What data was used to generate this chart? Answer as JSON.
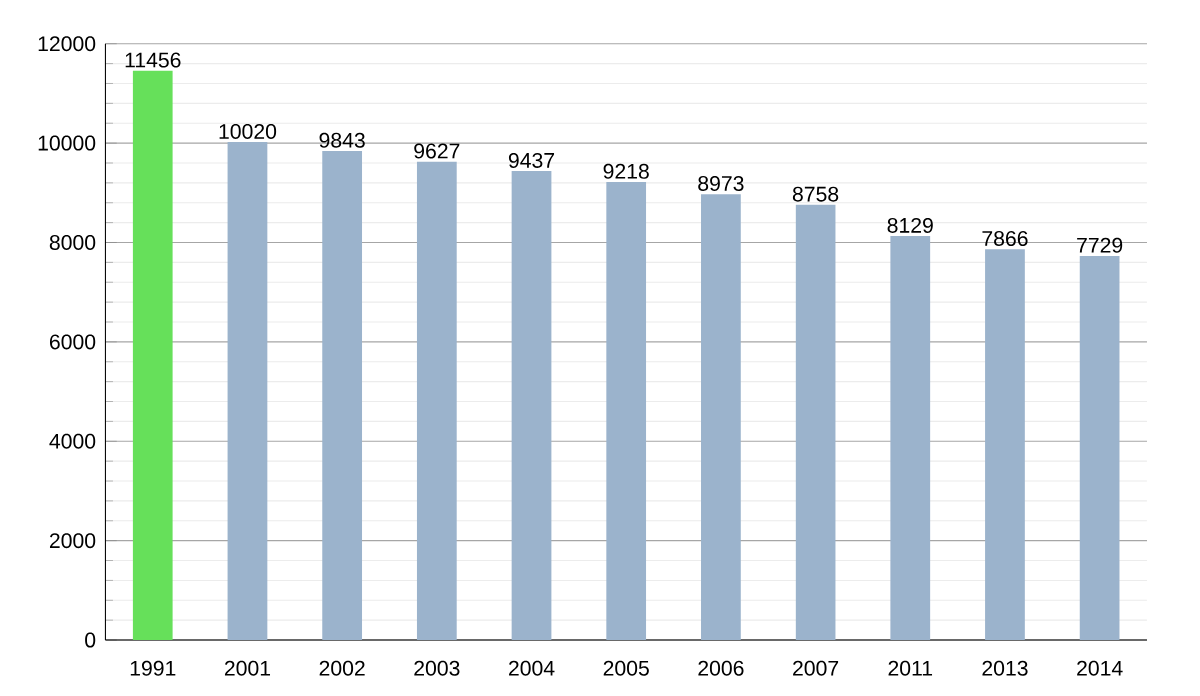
{
  "chart_data": {
    "type": "bar",
    "categories": [
      "1991",
      "2001",
      "2002",
      "2003",
      "2004",
      "2005",
      "2006",
      "2007",
      "2011",
      "2013",
      "2014"
    ],
    "values": [
      11456,
      10020,
      9843,
      9627,
      9437,
      9218,
      8973,
      8758,
      8129,
      7866,
      7729
    ],
    "colors": [
      "#66e05a",
      "#9bb3cc",
      "#9bb3cc",
      "#9bb3cc",
      "#9bb3cc",
      "#9bb3cc",
      "#9bb3cc",
      "#9bb3cc",
      "#9bb3cc",
      "#9bb3cc",
      "#9bb3cc"
    ],
    "ylim": [
      0,
      12000
    ],
    "yticks": [
      0,
      2000,
      4000,
      6000,
      8000,
      10000,
      12000
    ],
    "grid": "y",
    "data_labels": true
  }
}
